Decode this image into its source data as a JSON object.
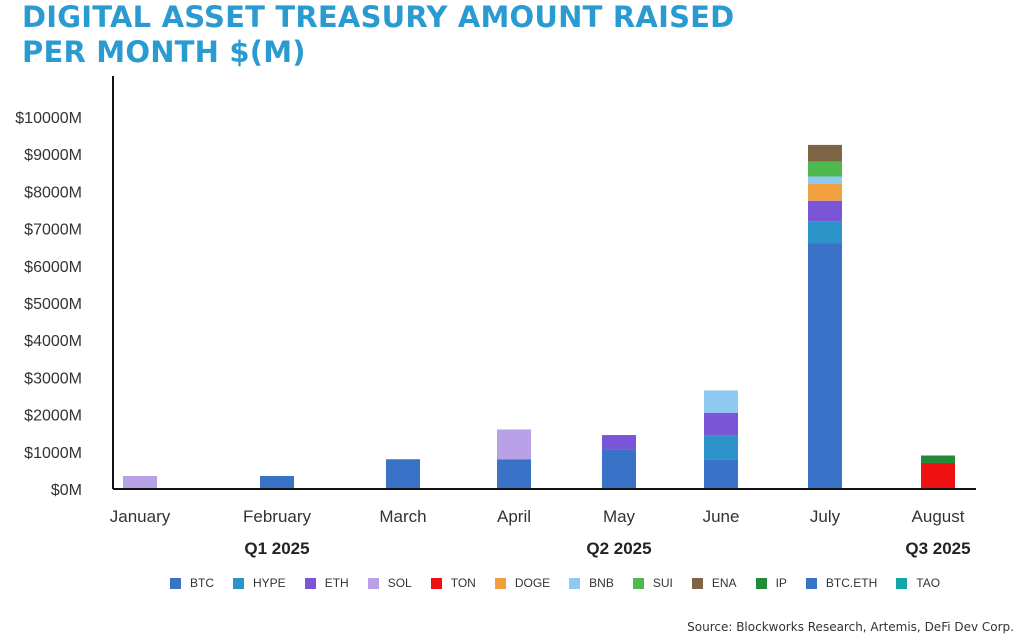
{
  "title_line1": "DIGITAL ASSET TREASURY AMOUNT RAISED",
  "title_line2": "PER MONTH $(M)",
  "source": "Source: Blockworks Research, Artemis, DeFi Dev Corp.",
  "colors": {
    "BTC": "#3a72c8",
    "HYPE": "#2b93c7",
    "ETH": "#7a55d8",
    "SOL": "#b9a1e8",
    "TON": "#ee1111",
    "DOGE": "#f0a040",
    "BNB": "#8dc9f0",
    "SUI": "#4fb84f",
    "ENA": "#7f6548",
    "IP": "#238a37",
    "BTC.ETH": "#3a72c8",
    "TAO": "#17a6a8"
  },
  "chart_data": {
    "type": "bar",
    "stacked": true,
    "title": "DIGITAL ASSET TREASURY AMOUNT RAISED PER MONTH $(M)",
    "categories": [
      "January",
      "February",
      "March",
      "April",
      "May",
      "June",
      "July",
      "August"
    ],
    "quarter_groups": [
      {
        "label": "Q1 2025",
        "categories": [
          "January",
          "February",
          "March"
        ]
      },
      {
        "label": "Q2 2025",
        "categories": [
          "April",
          "May",
          "June"
        ]
      },
      {
        "label": "Q3 2025",
        "categories": [
          "July",
          "August"
        ]
      }
    ],
    "y_ticks": [
      "$0M",
      "$1000M",
      "$2000M",
      "$3000M",
      "$4000M",
      "$5000M",
      "$6000M",
      "$7000M",
      "$8000M",
      "$9000M",
      "$10000M"
    ],
    "ylim": [
      0,
      10000
    ],
    "series": [
      {
        "name": "BTC",
        "values": [
          0,
          350,
          800,
          800,
          1050,
          800,
          6600,
          0
        ]
      },
      {
        "name": "HYPE",
        "values": [
          0,
          0,
          0,
          0,
          0,
          650,
          600,
          0
        ]
      },
      {
        "name": "ETH",
        "values": [
          0,
          0,
          0,
          0,
          400,
          600,
          550,
          0
        ]
      },
      {
        "name": "SOL",
        "values": [
          350,
          0,
          0,
          800,
          0,
          0,
          0,
          0
        ]
      },
      {
        "name": "TON",
        "values": [
          0,
          0,
          0,
          0,
          0,
          0,
          0,
          700
        ]
      },
      {
        "name": "DOGE",
        "values": [
          0,
          0,
          0,
          0,
          0,
          0,
          450,
          0
        ]
      },
      {
        "name": "BNB",
        "values": [
          0,
          0,
          0,
          0,
          0,
          600,
          200,
          0
        ]
      },
      {
        "name": "SUI",
        "values": [
          0,
          0,
          0,
          0,
          0,
          0,
          400,
          0
        ]
      },
      {
        "name": "ENA",
        "values": [
          0,
          0,
          0,
          0,
          0,
          0,
          450,
          0
        ]
      },
      {
        "name": "IP",
        "values": [
          0,
          0,
          0,
          0,
          0,
          0,
          0,
          200
        ]
      },
      {
        "name": "BTC.ETH",
        "values": [
          0,
          0,
          0,
          0,
          0,
          0,
          0,
          0
        ]
      },
      {
        "name": "TAO",
        "values": [
          0,
          0,
          0,
          0,
          0,
          0,
          0,
          0
        ]
      }
    ],
    "legend_position": "bottom",
    "grid": false
  }
}
